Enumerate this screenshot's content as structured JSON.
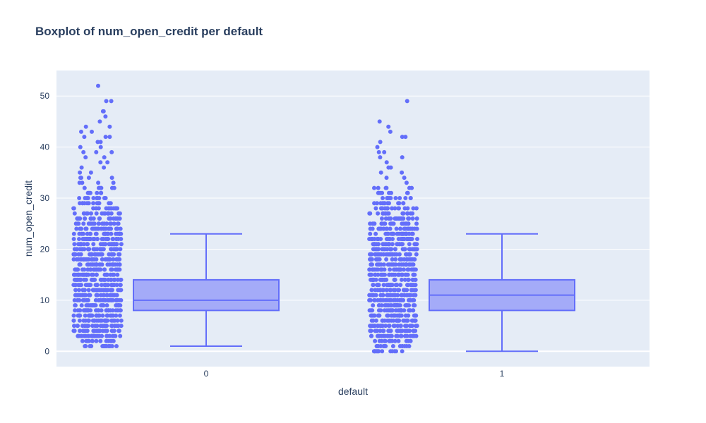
{
  "chart_data": {
    "type": "box",
    "title": "Boxplot of num_open_credit per default",
    "xlabel": "default",
    "ylabel": "num_open_credit",
    "categories": [
      "0",
      "1"
    ],
    "ylim": [
      -3,
      55
    ],
    "yticks": [
      0,
      10,
      20,
      30,
      40,
      50
    ],
    "grid": true,
    "show_points": "all",
    "colors": {
      "plot_bg": "#e5ecf6",
      "grid": "#ffffff",
      "marker": "#636efa",
      "box_fill": "#a4abf8",
      "box_line": "#636efa",
      "text": "#2a3f5f"
    },
    "boxes": [
      {
        "category": "0",
        "min": 1,
        "q1": 8,
        "median": 10,
        "q3": 14,
        "max": 23,
        "points_dense_range": [
          1,
          34
        ],
        "points_outliers": [
          35,
          35,
          36,
          36,
          37,
          37,
          38,
          38,
          39,
          39,
          39,
          40,
          40,
          41,
          41,
          42,
          42,
          42,
          43,
          43,
          44,
          44,
          45,
          46,
          47,
          47,
          49,
          49,
          52
        ]
      },
      {
        "category": "1",
        "min": 0,
        "q1": 8,
        "median": 11,
        "q3": 14,
        "max": 23,
        "points_dense_range": [
          0,
          32
        ],
        "points_outliers": [
          33,
          34,
          34,
          35,
          35,
          36,
          36,
          37,
          38,
          38,
          39,
          39,
          40,
          41,
          42,
          42,
          43,
          44,
          45,
          49
        ]
      }
    ]
  }
}
